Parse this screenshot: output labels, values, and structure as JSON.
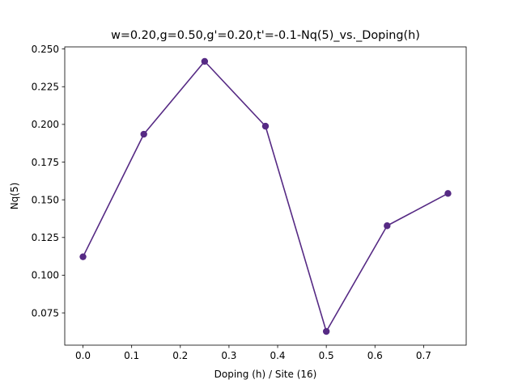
{
  "chart_data": {
    "type": "line",
    "title": "w=0.20,g=0.50,g'=0.20,t'=-0.1-Nq(5)_vs._Doping(h)",
    "xlabel": "Doping (h) / Site (16)",
    "ylabel": "Nq(5)",
    "xlim": [
      -0.0375,
      0.7875
    ],
    "ylim": [
      0.0536,
      0.2514
    ],
    "x_ticks": [
      0.0,
      0.1,
      0.2,
      0.3,
      0.4,
      0.5,
      0.6,
      0.7
    ],
    "x_tick_labels": [
      "0.0",
      "0.1",
      "0.2",
      "0.3",
      "0.4",
      "0.5",
      "0.6",
      "0.7"
    ],
    "y_ticks": [
      0.075,
      0.1,
      0.125,
      0.15,
      0.175,
      0.2,
      0.225,
      0.25
    ],
    "y_tick_labels": [
      "0.075",
      "0.100",
      "0.125",
      "0.150",
      "0.175",
      "0.200",
      "0.225",
      "0.250"
    ],
    "grid": false,
    "series": [
      {
        "color": "#562a84",
        "x": [
          0.0,
          0.125,
          0.25,
          0.375,
          0.5,
          0.625,
          0.75
        ],
        "y": [
          0.1122,
          0.1935,
          0.2418,
          0.1988,
          0.0627,
          0.1328,
          0.1542
        ]
      }
    ]
  }
}
